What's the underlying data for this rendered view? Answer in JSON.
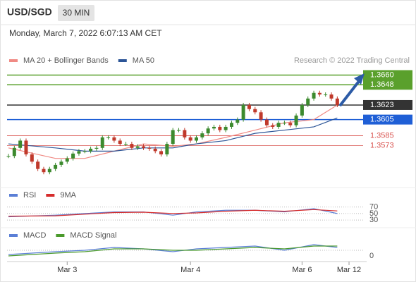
{
  "header": {
    "symbol": "USD/SGD",
    "interval": "30 MIN",
    "datetime": "Monday, March 7, 2022 6:07:13 AM CET"
  },
  "x_axis": {
    "xlim": [
      0,
      61
    ],
    "xticks": [
      {
        "value": 10,
        "label": "Mar 3"
      },
      {
        "value": 31,
        "label": "Mar 4"
      },
      {
        "value": 50,
        "label": "Mar 6"
      },
      {
        "value": 58,
        "label": "Mar 12"
      }
    ]
  },
  "chart_data": [
    {
      "type": "candlestick",
      "source": "Research © 2022 Trading Central",
      "up_color": "#3c8a2e",
      "down_color": "#c0392b",
      "ylim": [
        1.3528,
        1.367
      ],
      "close": [
        1.356,
        1.357,
        1.3579,
        1.3562,
        1.3553,
        1.3544,
        1.354,
        1.3544,
        1.3549,
        1.3553,
        1.3557,
        1.3563,
        1.3566,
        1.3566,
        1.3569,
        1.357,
        1.3583,
        1.3583,
        1.3579,
        1.3575,
        1.3575,
        1.357,
        1.3572,
        1.357,
        1.3569,
        1.3566,
        1.3562,
        1.3575,
        1.3592,
        1.3592,
        1.3583,
        1.3579,
        1.3583,
        1.3588,
        1.3594,
        1.3596,
        1.3592,
        1.3596,
        1.3601,
        1.3605,
        1.3623,
        1.3618,
        1.3614,
        1.3605,
        1.3598,
        1.3596,
        1.3601,
        1.3601,
        1.3598,
        1.361,
        1.3623,
        1.3631,
        1.3638,
        1.3636,
        1.3636,
        1.3631,
        1.3623
      ],
      "levels": [
        {
          "value": 1.366,
          "label": "1.3660",
          "color": "#5aa02c",
          "fill": true
        },
        {
          "value": 1.3648,
          "label": "1.3648",
          "color": "#5aa02c",
          "fill": true
        },
        {
          "value": 1.3623,
          "label": "1.3623",
          "color": "#333333",
          "fill": true
        },
        {
          "value": 1.3605,
          "label": "1.3605",
          "color": "#1f5fd6",
          "fill": true
        },
        {
          "value": 1.3585,
          "label": "1.3585",
          "color": "#d9534f",
          "fill": false
        },
        {
          "value": 1.3573,
          "label": "1.3573",
          "color": "#d9534f",
          "fill": false
        }
      ],
      "series": [
        {
          "name": "MA 20 + Bollinger Bands",
          "color": "#f08a84",
          "x": [
            0,
            8,
            13,
            18,
            23,
            28,
            32,
            37,
            42,
            47,
            52,
            56
          ],
          "values": [
            1.357,
            1.3557,
            1.3557,
            1.3566,
            1.3575,
            1.3572,
            1.3575,
            1.3583,
            1.3592,
            1.3601,
            1.3605,
            1.3623
          ]
        },
        {
          "name": "MA 50",
          "color": "#2c5597",
          "x": [
            0,
            8,
            13,
            18,
            23,
            28,
            32,
            37,
            42,
            47,
            52,
            56
          ],
          "values": [
            1.3575,
            1.357,
            1.3566,
            1.3566,
            1.357,
            1.357,
            1.3575,
            1.3579,
            1.3588,
            1.3592,
            1.3596,
            1.3607
          ]
        }
      ]
    },
    {
      "type": "line",
      "ylim": [
        26,
        80
      ],
      "yticks": [
        70,
        50,
        30
      ],
      "series": [
        {
          "name": "RSI",
          "color": "#5b7fd6",
          "x": [
            0,
            8,
            13,
            18,
            23,
            28,
            32,
            37,
            42,
            47,
            52,
            56
          ],
          "values": [
            40,
            45,
            50,
            55,
            55,
            45,
            55,
            60,
            60,
            55,
            65,
            50
          ]
        },
        {
          "name": "9MA",
          "color": "#d62c2c",
          "x": [
            0,
            8,
            13,
            18,
            23,
            28,
            32,
            37,
            42,
            47,
            52,
            56
          ],
          "values": [
            42,
            43,
            48,
            53,
            54,
            50,
            52,
            57,
            60,
            57,
            62,
            58
          ]
        }
      ]
    },
    {
      "type": "line",
      "ylim": [
        -0.0006,
        0.0006
      ],
      "yticks": [
        0
      ],
      "series": [
        {
          "name": "MACD",
          "color": "#5b7fd6",
          "x": [
            0,
            8,
            13,
            18,
            23,
            28,
            32,
            37,
            42,
            47,
            52,
            56
          ],
          "values": [
            -0.0003,
            -0.0001,
            0.0,
            0.0002,
            0.0001,
            -0.0001,
            0.0001,
            0.0002,
            0.0003,
            0.0,
            0.0004,
            0.0002
          ]
        },
        {
          "name": "MACD Signal",
          "color": "#4a9a2c",
          "x": [
            0,
            8,
            13,
            18,
            23,
            28,
            32,
            37,
            42,
            47,
            52,
            56
          ],
          "values": [
            -0.0004,
            -0.0002,
            -0.0001,
            0.0001,
            0.0001,
            0.0,
            0.0,
            0.0001,
            0.0002,
            0.0001,
            0.0003,
            0.0003
          ]
        }
      ]
    }
  ]
}
